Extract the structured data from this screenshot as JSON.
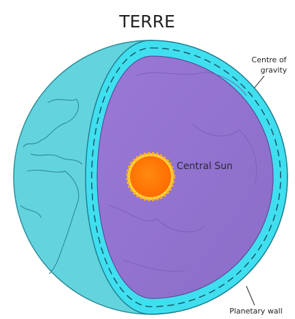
{
  "title": "TERRE",
  "labels": {
    "centre_of_gravity": [
      "Centre of",
      "gravity"
    ],
    "central_sun": "Central Sun",
    "planetary_wall": "Planetary wall"
  }
}
